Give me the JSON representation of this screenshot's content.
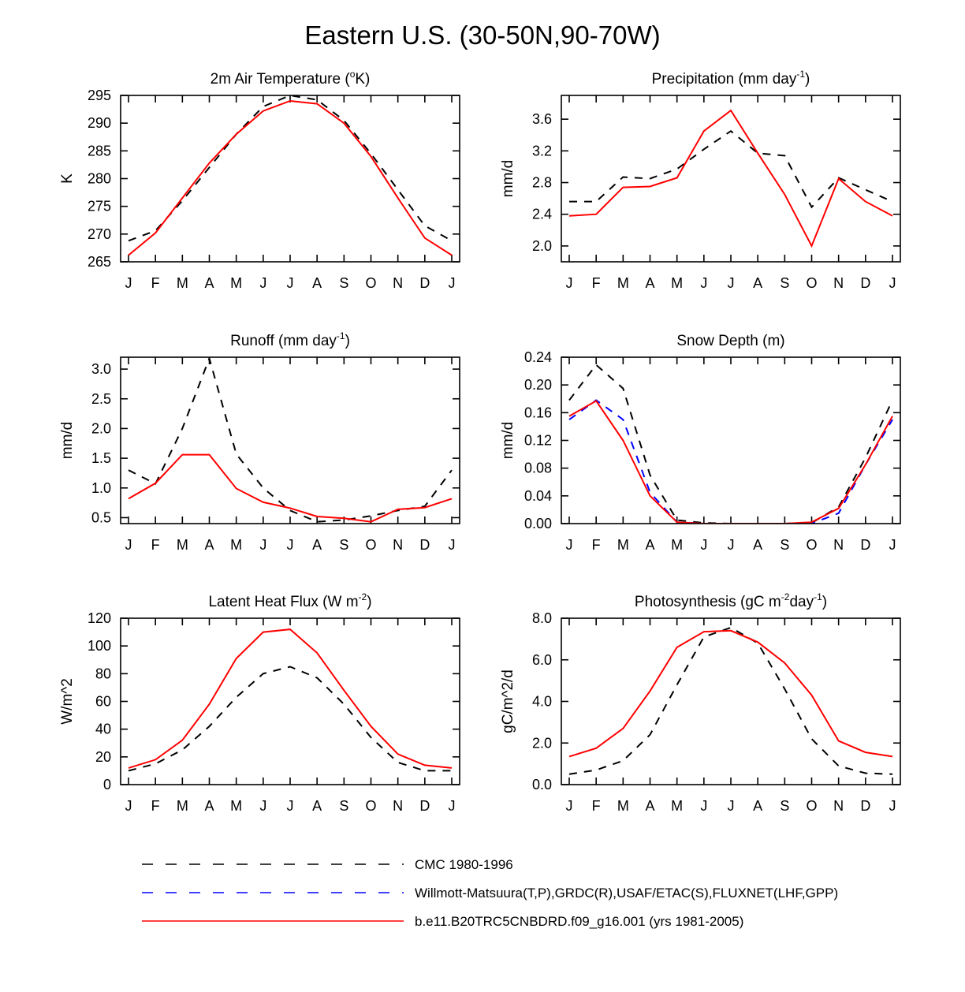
{
  "figure": {
    "title": "Eastern U.S. (30-50N,90-70W)"
  },
  "series_styles": {
    "cmc": {
      "color": "#000000",
      "dash": "10,9"
    },
    "obs": {
      "color": "#0000ff",
      "dash": "10,9"
    },
    "model": {
      "color": "#ff0000",
      "dash": ""
    }
  },
  "legend": [
    {
      "key": "cmc",
      "label": "CMC 1980-1996"
    },
    {
      "key": "obs",
      "label": "Willmott-Matsuura(T,P),GRDC(R),USAF/ETAC(S),FLUXNET(LHF,GPP)"
    },
    {
      "key": "model",
      "label": "b.e11.B20TRC5CNBDRD.f09_g16.001 (yrs 1981-2005)"
    }
  ],
  "chart_data": [
    {
      "id": "air-temperature",
      "type": "line",
      "title": "2m Air Temperature",
      "title_parts": [
        {
          "t": "2m Air Temperature ("
        },
        {
          "t": "o",
          "sup": true
        },
        {
          "t": "K)"
        }
      ],
      "ylabel": "K",
      "categories": [
        "J",
        "F",
        "M",
        "A",
        "M",
        "J",
        "J",
        "A",
        "S",
        "O",
        "N",
        "D",
        "J"
      ],
      "ylim": [
        265,
        295
      ],
      "yticks": [
        265,
        270,
        275,
        280,
        285,
        290,
        295
      ],
      "ytick_labels": [
        "265",
        "270",
        "275",
        "280",
        "285",
        "290",
        "295"
      ],
      "series": [
        {
          "key": "cmc",
          "values": [
            268.8,
            270.6,
            276.0,
            282.0,
            288.0,
            293.0,
            295.0,
            294.2,
            290.5,
            284.5,
            278.0,
            271.5,
            268.8
          ]
        },
        {
          "key": "model",
          "values": [
            266.2,
            270.2,
            276.5,
            282.8,
            288.0,
            292.2,
            294.0,
            293.5,
            290.0,
            284.0,
            276.5,
            269.3,
            266.2
          ]
        }
      ]
    },
    {
      "id": "precipitation",
      "type": "line",
      "title": "Precipitation",
      "title_parts": [
        {
          "t": "Precipitation (mm day"
        },
        {
          "t": "-1",
          "sup": true
        },
        {
          "t": ")"
        }
      ],
      "ylabel": "mm/d",
      "categories": [
        "J",
        "F",
        "M",
        "A",
        "M",
        "J",
        "J",
        "A",
        "S",
        "O",
        "N",
        "D",
        "J"
      ],
      "ylim": [
        1.8,
        3.9
      ],
      "yticks": [
        2.0,
        2.4,
        2.8,
        3.2,
        3.6
      ],
      "ytick_labels": [
        "2.0",
        "2.4",
        "2.8",
        "3.2",
        "3.6"
      ],
      "series": [
        {
          "key": "cmc",
          "values": [
            2.56,
            2.56,
            2.87,
            2.85,
            2.97,
            3.22,
            3.45,
            3.17,
            3.14,
            2.49,
            2.86,
            2.71,
            2.56
          ]
        },
        {
          "key": "model",
          "values": [
            2.38,
            2.4,
            2.74,
            2.75,
            2.86,
            3.45,
            3.71,
            3.17,
            2.65,
            2.0,
            2.85,
            2.56,
            2.38
          ]
        }
      ]
    },
    {
      "id": "runoff",
      "type": "line",
      "title": "Runoff",
      "title_parts": [
        {
          "t": "Runoff (mm day"
        },
        {
          "t": "-1",
          "sup": true
        },
        {
          "t": ")"
        }
      ],
      "ylabel": "mm/d",
      "categories": [
        "J",
        "F",
        "M",
        "A",
        "M",
        "J",
        "J",
        "A",
        "S",
        "O",
        "N",
        "D",
        "J"
      ],
      "ylim": [
        0.4,
        3.2
      ],
      "yticks": [
        0.5,
        1.0,
        1.5,
        2.0,
        2.5,
        3.0
      ],
      "ytick_labels": [
        "0.5",
        "1.0",
        "1.5",
        "2.0",
        "2.5",
        "3.0"
      ],
      "series": [
        {
          "key": "cmc",
          "values": [
            1.3,
            1.07,
            2.0,
            3.18,
            1.57,
            1.0,
            0.62,
            0.43,
            0.46,
            0.53,
            0.62,
            0.69,
            1.3
          ]
        },
        {
          "key": "model",
          "values": [
            0.82,
            1.08,
            1.56,
            1.56,
            0.99,
            0.76,
            0.66,
            0.52,
            0.49,
            0.43,
            0.64,
            0.67,
            0.82
          ]
        }
      ]
    },
    {
      "id": "snow-depth",
      "type": "line",
      "title": "Snow Depth (m)",
      "title_parts": [
        {
          "t": "Snow Depth (m)"
        }
      ],
      "ylabel": "mm/d",
      "categories": [
        "J",
        "F",
        "M",
        "A",
        "M",
        "J",
        "J",
        "A",
        "S",
        "O",
        "N",
        "D",
        "J"
      ],
      "ylim": [
        0.0,
        0.24
      ],
      "yticks": [
        0.0,
        0.04,
        0.08,
        0.12,
        0.16,
        0.2,
        0.24
      ],
      "ytick_labels": [
        "0.00",
        "0.04",
        "0.08",
        "0.12",
        "0.16",
        "0.20",
        "0.24"
      ],
      "series": [
        {
          "key": "cmc",
          "values": [
            0.178,
            0.229,
            0.195,
            0.07,
            0.005,
            0.001,
            0.0,
            0.0,
            0.0,
            0.001,
            0.024,
            0.095,
            0.178
          ]
        },
        {
          "key": "obs",
          "values": [
            0.15,
            0.178,
            0.15,
            0.045,
            0.002,
            0.0,
            0.0,
            0.0,
            0.0,
            0.0,
            0.015,
            0.085,
            0.15
          ]
        },
        {
          "key": "model",
          "values": [
            0.155,
            0.177,
            0.12,
            0.04,
            0.002,
            0.0,
            0.0,
            0.0,
            0.0,
            0.002,
            0.022,
            0.085,
            0.155
          ]
        }
      ]
    },
    {
      "id": "latent-heat-flux",
      "type": "line",
      "title": "Latent Heat Flux",
      "title_parts": [
        {
          "t": "Latent Heat Flux (W m"
        },
        {
          "t": "-2",
          "sup": true
        },
        {
          "t": ")"
        }
      ],
      "ylabel": "W/m^2",
      "categories": [
        "J",
        "F",
        "M",
        "A",
        "M",
        "J",
        "J",
        "A",
        "S",
        "O",
        "N",
        "D",
        "J"
      ],
      "ylim": [
        0,
        120
      ],
      "yticks": [
        0,
        20,
        40,
        60,
        80,
        100,
        120
      ],
      "ytick_labels": [
        "0",
        "20",
        "40",
        "60",
        "80",
        "100",
        "120"
      ],
      "series": [
        {
          "key": "cmc",
          "values": [
            10,
            15,
            25,
            42,
            63,
            80,
            85,
            77,
            58,
            34,
            16,
            10,
            10
          ]
        },
        {
          "key": "model",
          "values": [
            12,
            18,
            32,
            58,
            91,
            110,
            112,
            95,
            68,
            42,
            22,
            14,
            12
          ]
        }
      ]
    },
    {
      "id": "photosynthesis",
      "type": "line",
      "title": "Photosynthesis",
      "title_parts": [
        {
          "t": "Photosynthesis (gC m"
        },
        {
          "t": "-2",
          "sup": true
        },
        {
          "t": "day"
        },
        {
          "t": "-1",
          "sup": true
        },
        {
          "t": ")"
        }
      ],
      "ylabel": "gC/m^2/d",
      "categories": [
        "J",
        "F",
        "M",
        "A",
        "M",
        "J",
        "J",
        "A",
        "S",
        "O",
        "N",
        "D",
        "J"
      ],
      "ylim": [
        0.0,
        8.0
      ],
      "yticks": [
        0.0,
        2.0,
        4.0,
        6.0,
        8.0
      ],
      "ytick_labels": [
        "0.0",
        "2.0",
        "4.0",
        "6.0",
        "8.0"
      ],
      "series": [
        {
          "key": "cmc",
          "values": [
            0.5,
            0.7,
            1.15,
            2.4,
            4.8,
            7.1,
            7.55,
            6.8,
            4.6,
            2.2,
            0.9,
            0.55,
            0.5
          ]
        },
        {
          "key": "model",
          "values": [
            1.35,
            1.75,
            2.7,
            4.5,
            6.6,
            7.35,
            7.4,
            6.85,
            5.85,
            4.3,
            2.1,
            1.55,
            1.35
          ]
        }
      ]
    }
  ]
}
